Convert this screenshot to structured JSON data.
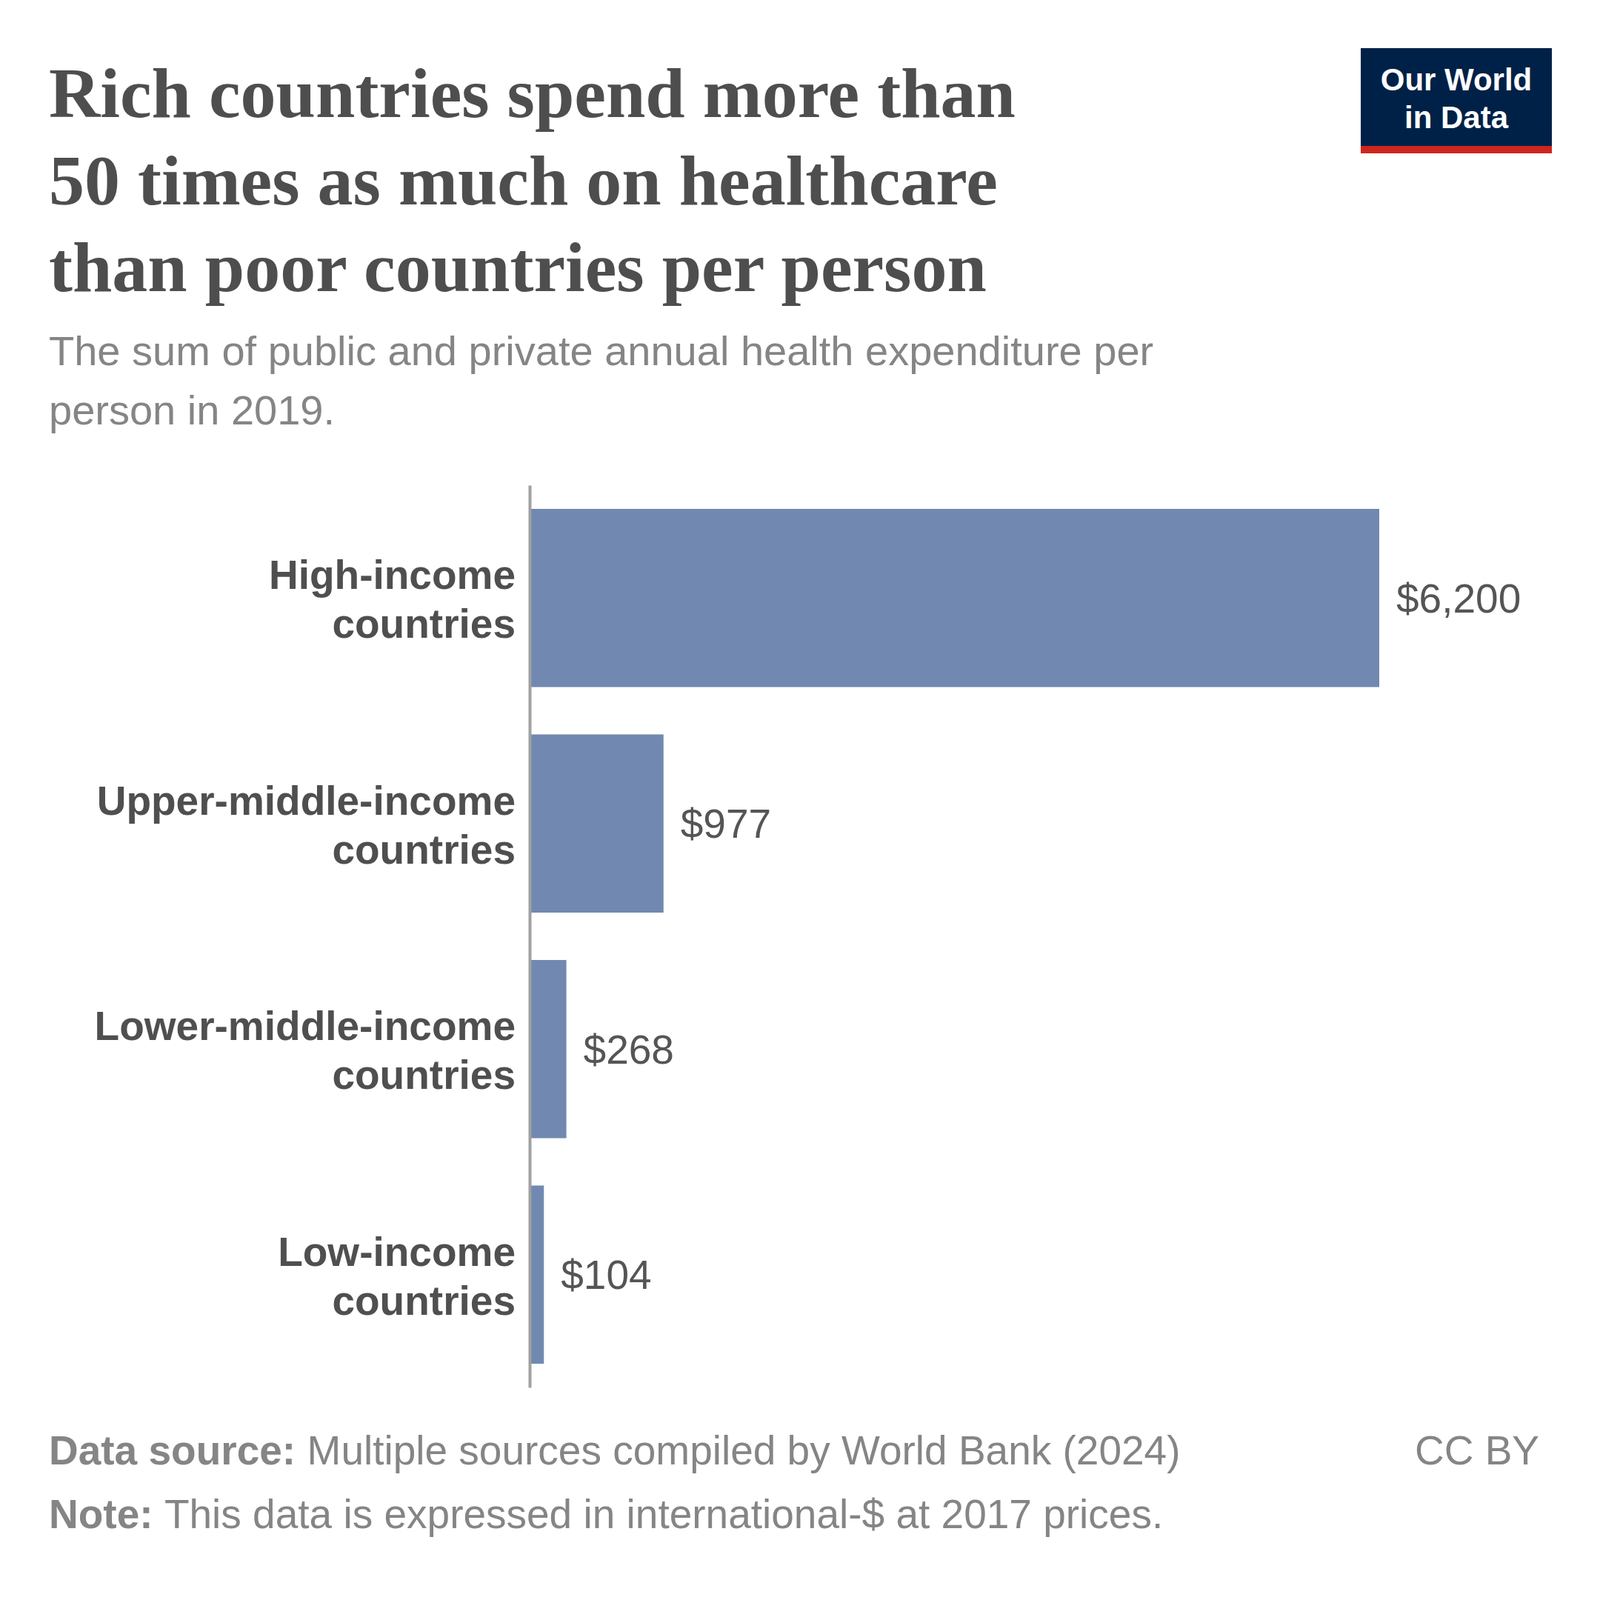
{
  "chart_data": {
    "type": "bar",
    "orientation": "horizontal",
    "title": [
      "Rich countries spend more than",
      "50 times as much on healthcare",
      "than poor countries per person"
    ],
    "subtitle": [
      "The sum of public and private annual health expenditure per",
      "person in 2019."
    ],
    "categories": [
      "High-income countries",
      "Upper-middle-income countries",
      "Lower-middle-income countries",
      "Low-income countries"
    ],
    "values": [
      6200,
      977,
      268,
      104
    ],
    "value_labels": [
      "$6,200",
      "$977",
      "$268",
      "$104"
    ],
    "data_labels": true,
    "color": "#7189b0",
    "xlim": [
      0,
      6200
    ],
    "tick_labels": "y",
    "grid": false,
    "source": {
      "label": "Data source:",
      "text": "Multiple sources compiled by World Bank (2024)"
    },
    "note": {
      "label": "Note:",
      "text": "This data is expressed in international-$ at 2017 prices."
    },
    "license": "CC BY",
    "logo": [
      "Our World",
      "in Data"
    ]
  }
}
